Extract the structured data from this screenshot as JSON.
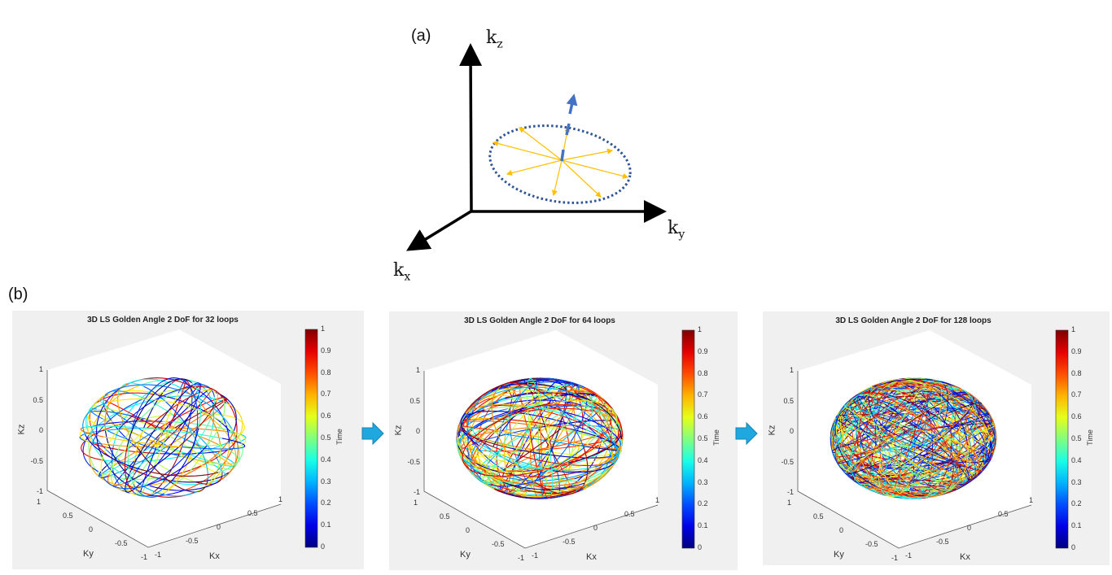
{
  "part_a": {
    "label": "(a)",
    "axes": {
      "kz": "k",
      "kz_sub": "z",
      "ky": "k",
      "ky_sub": "y",
      "kx": "k",
      "kx_sub": "x"
    },
    "colors": {
      "axis": "#000000",
      "ellipse": "#2f5597",
      "normal_arrow": "#4472c4",
      "radial_arrows": "#ffc000"
    }
  },
  "part_b": {
    "label": "(b)",
    "panels": [
      {
        "title": "3D LS Golden Angle 2 DoF for 32 loops",
        "loops": 32
      },
      {
        "title": "3D LS Golden Angle 2 DoF for 64 loops",
        "loops": 64
      },
      {
        "title": "3D LS Golden Angle 2 DoF for 128 loops",
        "loops": 128
      }
    ],
    "axes": {
      "xlabel": "Kx",
      "ylabel": "Ky",
      "zlabel": "Kz",
      "kz_ticks": [
        "1",
        "0.5",
        "0",
        "-0.5",
        "-1"
      ],
      "ky_ticks": [
        "1",
        "0.5",
        "0",
        "-0.5",
        "-1"
      ],
      "kx_ticks": [
        "-1",
        "-0.5",
        "0",
        "0.5",
        "1"
      ]
    },
    "colorbar": {
      "label": "Time",
      "ticks": [
        "1",
        "0.9",
        "0.8",
        "0.7",
        "0.6",
        "0.5",
        "0.4",
        "0.3",
        "0.2",
        "0.1",
        "0"
      ],
      "range": [
        0,
        1
      ],
      "colormap": "jet"
    },
    "flow_arrow_color": "#1fa7e0"
  }
}
